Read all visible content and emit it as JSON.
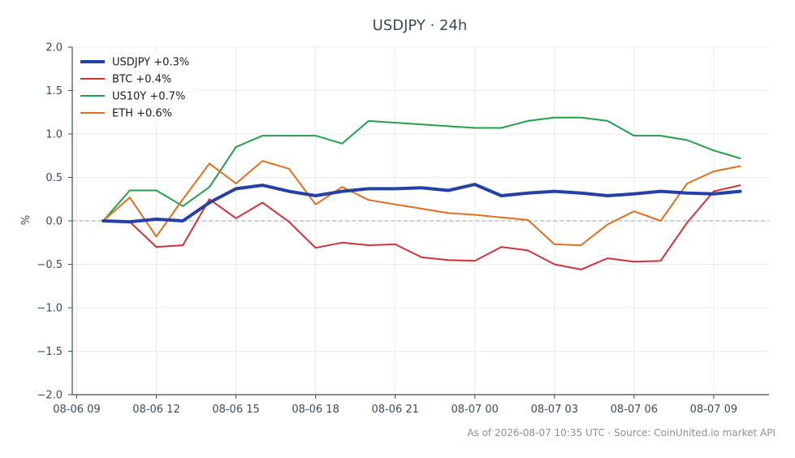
{
  "chart_data": {
    "type": "line",
    "title": "USDJPY · 24h",
    "ylabel": "%",
    "xlabel": "",
    "ylim": [
      -2.0,
      2.0
    ],
    "yticks": [
      "2.0",
      "1.5",
      "1.0",
      "0.5",
      "0.0",
      "−0.5",
      "−1.0",
      "−1.5",
      "−2.0"
    ],
    "ytick_values": [
      2.0,
      1.5,
      1.0,
      0.5,
      0.0,
      -0.5,
      -1.0,
      -1.5,
      -2.0
    ],
    "xlim": [
      "08-06 08:50",
      "08-07 11:05"
    ],
    "xticks": [
      "08-06 09",
      "08-06 12",
      "08-06 15",
      "08-06 18",
      "08-06 21",
      "08-07 00",
      "08-07 03",
      "08-07 06",
      "08-07 09"
    ],
    "xtick_times": [
      "08-06 09:00",
      "08-06 12:00",
      "08-06 15:00",
      "08-06 18:00",
      "08-06 21:00",
      "08-07 00:00",
      "08-07 03:00",
      "08-07 06:00",
      "08-07 09:00"
    ],
    "x": [
      "08-06 10:00",
      "08-06 11:00",
      "08-06 12:00",
      "08-06 13:00",
      "08-06 14:00",
      "08-06 15:00",
      "08-06 16:00",
      "08-06 17:00",
      "08-06 18:00",
      "08-06 19:00",
      "08-06 20:00",
      "08-06 21:00",
      "08-06 22:00",
      "08-06 23:00",
      "08-07 00:00",
      "08-07 01:00",
      "08-07 02:00",
      "08-07 03:00",
      "08-07 04:00",
      "08-07 05:00",
      "08-07 06:00",
      "08-07 07:00",
      "08-07 08:00",
      "08-07 09:00",
      "08-07 10:00"
    ],
    "grid": true,
    "legend_position": "top-left",
    "zero_line": true,
    "series": [
      {
        "name": "USDJPY +0.3%",
        "color": "#2541a6",
        "emphasis": true,
        "values": [
          0.0,
          -0.01,
          0.02,
          0.0,
          0.21,
          0.37,
          0.41,
          0.34,
          0.29,
          0.34,
          0.37,
          0.37,
          0.38,
          0.35,
          0.42,
          0.29,
          0.32,
          0.34,
          0.32,
          0.29,
          0.31,
          0.34,
          0.32,
          0.31,
          0.34
        ]
      },
      {
        "name": "BTC +0.4%",
        "color": "#d03238",
        "values": [
          0.0,
          -0.01,
          -0.3,
          -0.28,
          0.25,
          0.03,
          0.21,
          -0.01,
          -0.31,
          -0.25,
          -0.28,
          -0.27,
          -0.42,
          -0.45,
          -0.46,
          -0.3,
          -0.34,
          -0.5,
          -0.56,
          -0.43,
          -0.47,
          -0.46,
          -0.02,
          0.34,
          0.41
        ]
      },
      {
        "name": "US10Y +0.7%",
        "color": "#22a04b",
        "values": [
          0.0,
          0.35,
          0.35,
          0.17,
          0.39,
          0.85,
          0.98,
          0.98,
          0.98,
          0.89,
          1.15,
          1.13,
          1.11,
          1.09,
          1.07,
          1.07,
          1.15,
          1.19,
          1.19,
          1.15,
          0.98,
          0.98,
          0.93,
          0.81,
          0.72
        ]
      },
      {
        "name": "ETH +0.6%",
        "color": "#e06e1f",
        "values": [
          0.0,
          0.27,
          -0.18,
          0.25,
          0.66,
          0.43,
          0.69,
          0.6,
          0.19,
          0.39,
          0.24,
          0.19,
          0.14,
          0.09,
          0.07,
          0.04,
          0.01,
          -0.27,
          -0.28,
          -0.04,
          0.11,
          0.0,
          0.43,
          0.57,
          0.63
        ]
      }
    ]
  },
  "footer": "As of 2026-08-07 10:35 UTC · Source: CoinUnited.io market API"
}
